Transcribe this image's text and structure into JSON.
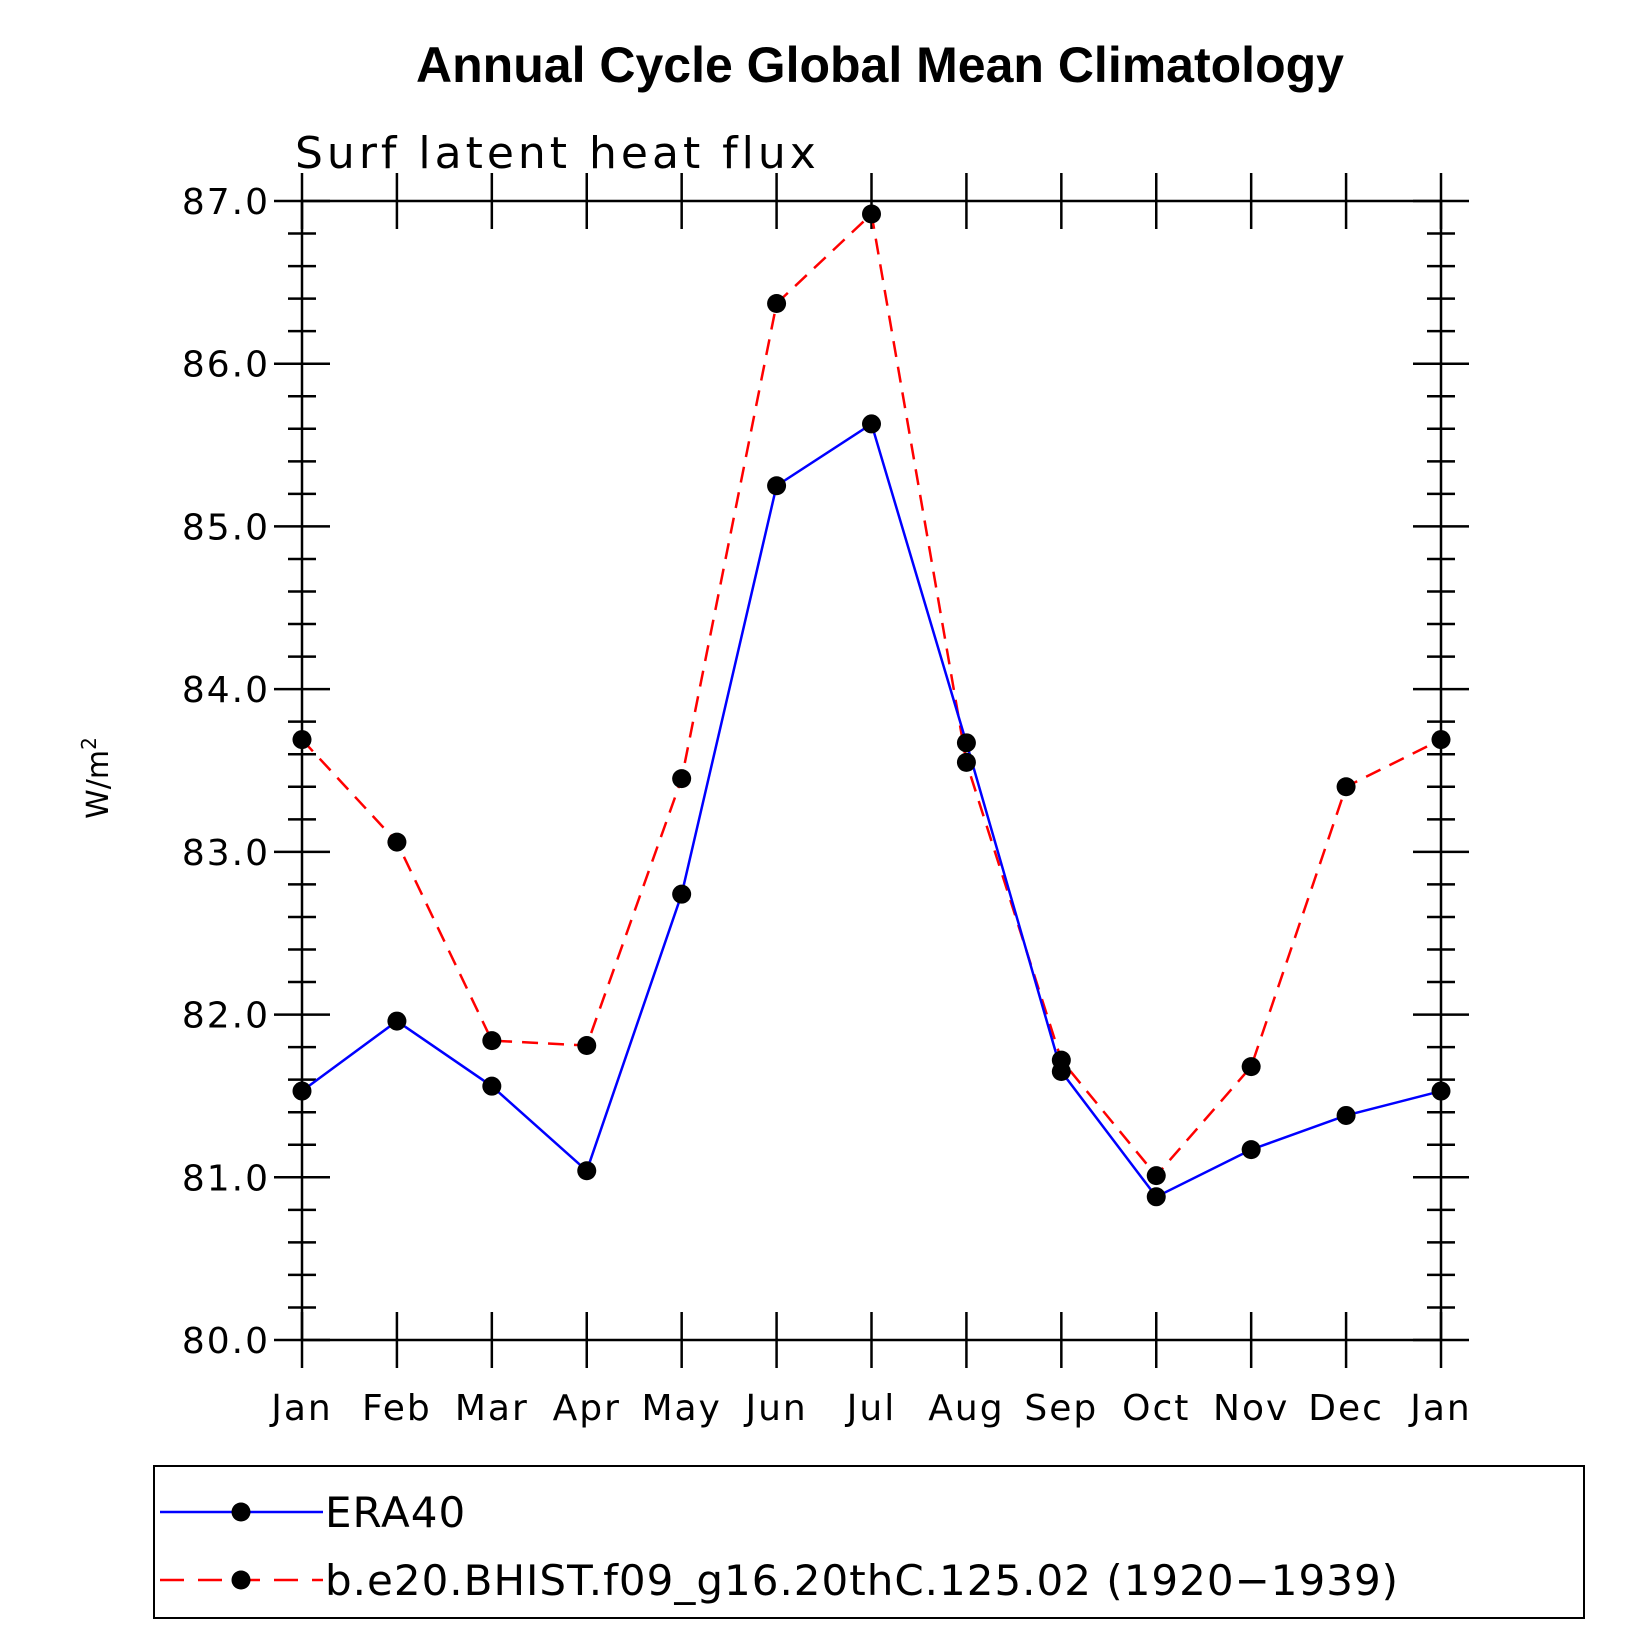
{
  "chart_data": {
    "type": "line",
    "title": "Annual Cycle Global Mean Climatology",
    "subtitle": "Surf latent heat flux",
    "ylabel": "W/m",
    "ylabel_superscript": "2",
    "xlabel": "",
    "categories": [
      "Jan",
      "Feb",
      "Mar",
      "Apr",
      "May",
      "Jun",
      "Jul",
      "Aug",
      "Sep",
      "Oct",
      "Nov",
      "Dec",
      "Jan"
    ],
    "ylim": [
      80.0,
      87.0
    ],
    "yticks": [
      "80.0",
      "81.0",
      "82.0",
      "83.0",
      "84.0",
      "85.0",
      "86.0",
      "87.0"
    ],
    "grid": false,
    "legend_position": "bottom",
    "series": [
      {
        "name": "ERA40",
        "color": "#0000ff",
        "dash": "solid",
        "values": [
          81.53,
          81.96,
          81.56,
          81.04,
          82.74,
          85.25,
          85.63,
          83.67,
          81.65,
          80.88,
          81.17,
          81.38,
          81.53
        ]
      },
      {
        "name": "b.e20.BHIST.f09_g16.20thC.125.02 (1920−1939)",
        "color": "#ff0000",
        "dash": "dashed",
        "values": [
          83.69,
          83.06,
          81.84,
          81.81,
          83.45,
          86.37,
          86.92,
          83.55,
          81.72,
          81.01,
          81.68,
          83.4,
          83.69
        ]
      }
    ]
  }
}
